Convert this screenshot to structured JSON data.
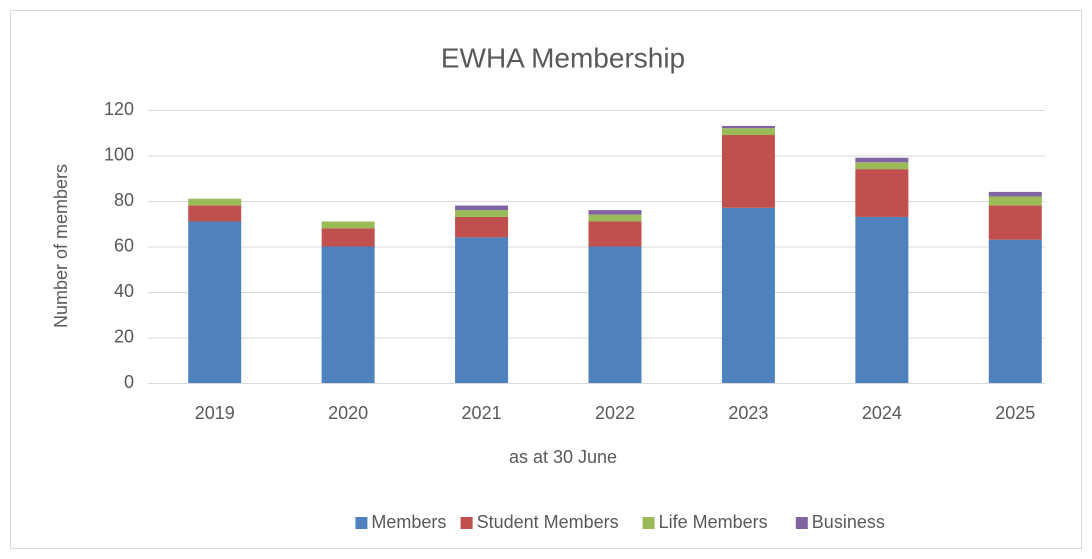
{
  "chart_data": {
    "type": "stacked_bar",
    "title": "EWHA Membership",
    "x_label": "as at 30 June",
    "y_label": "Number of members",
    "categories": [
      "2019",
      "2020",
      "2021",
      "2022",
      "2023",
      "2024",
      "2025"
    ],
    "series": [
      {
        "name": "Members",
        "color": "#4f81bd",
        "values": [
          71,
          60,
          64,
          60,
          77,
          73,
          63
        ]
      },
      {
        "name": "Student Members",
        "color": "#c0504d",
        "values": [
          7,
          8,
          9,
          11,
          32,
          21,
          15
        ]
      },
      {
        "name": "Life Members",
        "color": "#9bbb59",
        "values": [
          3,
          3,
          3,
          3,
          3,
          3,
          4
        ]
      },
      {
        "name": "Business",
        "color": "#8064a2",
        "values": [
          0,
          0,
          2,
          2,
          1,
          2,
          2
        ]
      }
    ],
    "ylim": [
      0,
      120
    ],
    "yticks": [
      0,
      20,
      40,
      60,
      80,
      100,
      120
    ],
    "grid": true,
    "legend": "bottom"
  }
}
